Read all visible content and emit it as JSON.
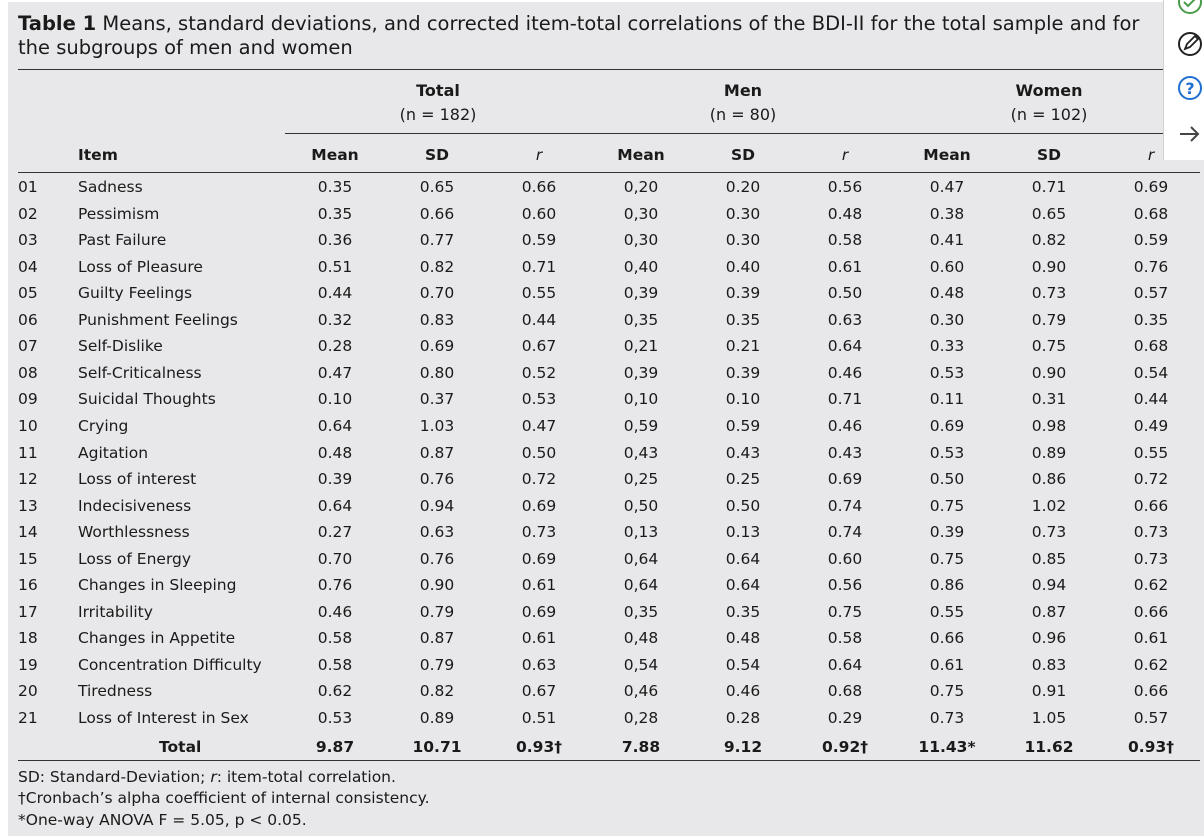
{
  "caption": {
    "label": "Table 1",
    "text": "Means, standard deviations, and corrected item-total correlations of the BDI-II for the total sample and for the subgroups of men and women"
  },
  "groups": [
    {
      "name": "Total",
      "n": "(n = 182)"
    },
    {
      "name": "Men",
      "n": "(n = 80)"
    },
    {
      "name": "Women",
      "n": "(n = 102)"
    }
  ],
  "header": {
    "item": "Item",
    "mean": "Mean",
    "sd": "SD",
    "r": "r"
  },
  "rows": [
    {
      "code": "01",
      "item": "Sadness",
      "t_mean": "0.35",
      "t_sd": "0.65",
      "t_r": "0.66",
      "m_mean": "0,20",
      "m_sd": "0.20",
      "m_r": "0.56",
      "w_mean": "0.47",
      "w_sd": "0.71",
      "w_r": "0.69"
    },
    {
      "code": "02",
      "item": "Pessimism",
      "t_mean": "0.35",
      "t_sd": "0.66",
      "t_r": "0.60",
      "m_mean": "0,30",
      "m_sd": "0.30",
      "m_r": "0.48",
      "w_mean": "0.38",
      "w_sd": "0.65",
      "w_r": "0.68"
    },
    {
      "code": "03",
      "item": "Past Failure",
      "t_mean": "0.36",
      "t_sd": "0.77",
      "t_r": "0.59",
      "m_mean": "0,30",
      "m_sd": "0.30",
      "m_r": "0.58",
      "w_mean": "0.41",
      "w_sd": "0.82",
      "w_r": "0.59"
    },
    {
      "code": "04",
      "item": "Loss of Pleasure",
      "t_mean": "0.51",
      "t_sd": "0.82",
      "t_r": "0.71",
      "m_mean": "0,40",
      "m_sd": "0.40",
      "m_r": "0.61",
      "w_mean": "0.60",
      "w_sd": "0.90",
      "w_r": "0.76"
    },
    {
      "code": "05",
      "item": "Guilty Feelings",
      "t_mean": "0.44",
      "t_sd": "0.70",
      "t_r": "0.55",
      "m_mean": "0,39",
      "m_sd": "0.39",
      "m_r": "0.50",
      "w_mean": "0.48",
      "w_sd": "0.73",
      "w_r": "0.57"
    },
    {
      "code": "06",
      "item": "Punishment Feelings",
      "t_mean": "0.32",
      "t_sd": "0.83",
      "t_r": "0.44",
      "m_mean": "0,35",
      "m_sd": "0.35",
      "m_r": "0.63",
      "w_mean": "0.30",
      "w_sd": "0.79",
      "w_r": "0.35"
    },
    {
      "code": "07",
      "item": "Self-Dislike",
      "t_mean": "0.28",
      "t_sd": "0.69",
      "t_r": "0.67",
      "m_mean": "0,21",
      "m_sd": "0.21",
      "m_r": "0.64",
      "w_mean": "0.33",
      "w_sd": "0.75",
      "w_r": "0.68"
    },
    {
      "code": "08",
      "item": "Self-Criticalness",
      "t_mean": "0.47",
      "t_sd": "0.80",
      "t_r": "0.52",
      "m_mean": "0,39",
      "m_sd": "0.39",
      "m_r": "0.46",
      "w_mean": "0.53",
      "w_sd": "0.90",
      "w_r": "0.54"
    },
    {
      "code": "09",
      "item": "Suicidal Thoughts",
      "t_mean": "0.10",
      "t_sd": "0.37",
      "t_r": "0.53",
      "m_mean": "0,10",
      "m_sd": "0.10",
      "m_r": "0.71",
      "w_mean": "0.11",
      "w_sd": "0.31",
      "w_r": "0.44"
    },
    {
      "code": "10",
      "item": "Crying",
      "t_mean": "0.64",
      "t_sd": "1.03",
      "t_r": "0.47",
      "m_mean": "0,59",
      "m_sd": "0.59",
      "m_r": "0.46",
      "w_mean": "0.69",
      "w_sd": "0.98",
      "w_r": "0.49"
    },
    {
      "code": "11",
      "item": "Agitation",
      "t_mean": "0.48",
      "t_sd": "0.87",
      "t_r": "0.50",
      "m_mean": "0,43",
      "m_sd": "0.43",
      "m_r": "0.43",
      "w_mean": "0.53",
      "w_sd": "0.89",
      "w_r": "0.55"
    },
    {
      "code": "12",
      "item": "Loss of interest",
      "t_mean": "0.39",
      "t_sd": "0.76",
      "t_r": "0.72",
      "m_mean": "0,25",
      "m_sd": "0.25",
      "m_r": "0.69",
      "w_mean": "0.50",
      "w_sd": "0.86",
      "w_r": "0.72"
    },
    {
      "code": "13",
      "item": "Indecisiveness",
      "t_mean": "0.64",
      "t_sd": "0.94",
      "t_r": "0.69",
      "m_mean": "0,50",
      "m_sd": "0.50",
      "m_r": "0.74",
      "w_mean": "0.75",
      "w_sd": "1.02",
      "w_r": "0.66"
    },
    {
      "code": "14",
      "item": "Worthlessness",
      "t_mean": "0.27",
      "t_sd": "0.63",
      "t_r": "0.73",
      "m_mean": "0,13",
      "m_sd": "0.13",
      "m_r": "0.74",
      "w_mean": "0.39",
      "w_sd": "0.73",
      "w_r": "0.73"
    },
    {
      "code": "15",
      "item": "Loss of Energy",
      "t_mean": "0.70",
      "t_sd": "0.76",
      "t_r": "0.69",
      "m_mean": "0,64",
      "m_sd": "0.64",
      "m_r": "0.60",
      "w_mean": "0.75",
      "w_sd": "0.85",
      "w_r": "0.73"
    },
    {
      "code": "16",
      "item": "Changes in Sleeping",
      "t_mean": "0.76",
      "t_sd": "0.90",
      "t_r": "0.61",
      "m_mean": "0,64",
      "m_sd": "0.64",
      "m_r": "0.56",
      "w_mean": "0.86",
      "w_sd": "0.94",
      "w_r": "0.62"
    },
    {
      "code": "17",
      "item": "Irritability",
      "t_mean": "0.46",
      "t_sd": "0.79",
      "t_r": "0.69",
      "m_mean": "0,35",
      "m_sd": "0.35",
      "m_r": "0.75",
      "w_mean": "0.55",
      "w_sd": "0.87",
      "w_r": "0.66"
    },
    {
      "code": "18",
      "item": "Changes in Appetite",
      "t_mean": "0.58",
      "t_sd": "0.87",
      "t_r": "0.61",
      "m_mean": "0,48",
      "m_sd": "0.48",
      "m_r": "0.58",
      "w_mean": "0.66",
      "w_sd": "0.96",
      "w_r": "0.61"
    },
    {
      "code": "19",
      "item": "Concentration Difficulty",
      "t_mean": "0.58",
      "t_sd": "0.79",
      "t_r": "0.63",
      "m_mean": "0,54",
      "m_sd": "0.54",
      "m_r": "0.64",
      "w_mean": "0.61",
      "w_sd": "0.83",
      "w_r": "0.62"
    },
    {
      "code": "20",
      "item": "Tiredness",
      "t_mean": "0.62",
      "t_sd": "0.82",
      "t_r": "0.67",
      "m_mean": "0,46",
      "m_sd": "0.46",
      "m_r": "0.68",
      "w_mean": "0.75",
      "w_sd": "0.91",
      "w_r": "0.66"
    },
    {
      "code": "21",
      "item": "Loss of Interest in Sex",
      "t_mean": "0.53",
      "t_sd": "0.89",
      "t_r": "0.51",
      "m_mean": "0,28",
      "m_sd": "0.28",
      "m_r": "0.29",
      "w_mean": "0.73",
      "w_sd": "1.05",
      "w_r": "0.57"
    }
  ],
  "total_row": {
    "label": "Total",
    "t_mean": "9.87",
    "t_sd": "10.71",
    "t_r": "0.93†",
    "m_mean": "7.88",
    "m_sd": "9.12",
    "m_r": "0.92†",
    "w_mean": "11.43*",
    "w_sd": "11.62",
    "w_r": "0.93†"
  },
  "footnotes": {
    "sd_prefix": "SD: Standard-Deviation; ",
    "r_symbol": "r",
    "r_suffix": ": item-total correlation.",
    "dagger": "†Cronbach’s alpha coefficient of internal consistency.",
    "anova": "*One-way ANOVA F = 5.05, p < 0.05."
  },
  "side_icons": [
    "check-circle-icon",
    "edit-circle-icon",
    "help-circle-icon",
    "arrow-right-icon"
  ],
  "colors": {
    "panel": "#e8e8ea",
    "rule": "#333333",
    "icon_blue": "#1f6fd0",
    "icon_green": "#4a9d4a"
  }
}
